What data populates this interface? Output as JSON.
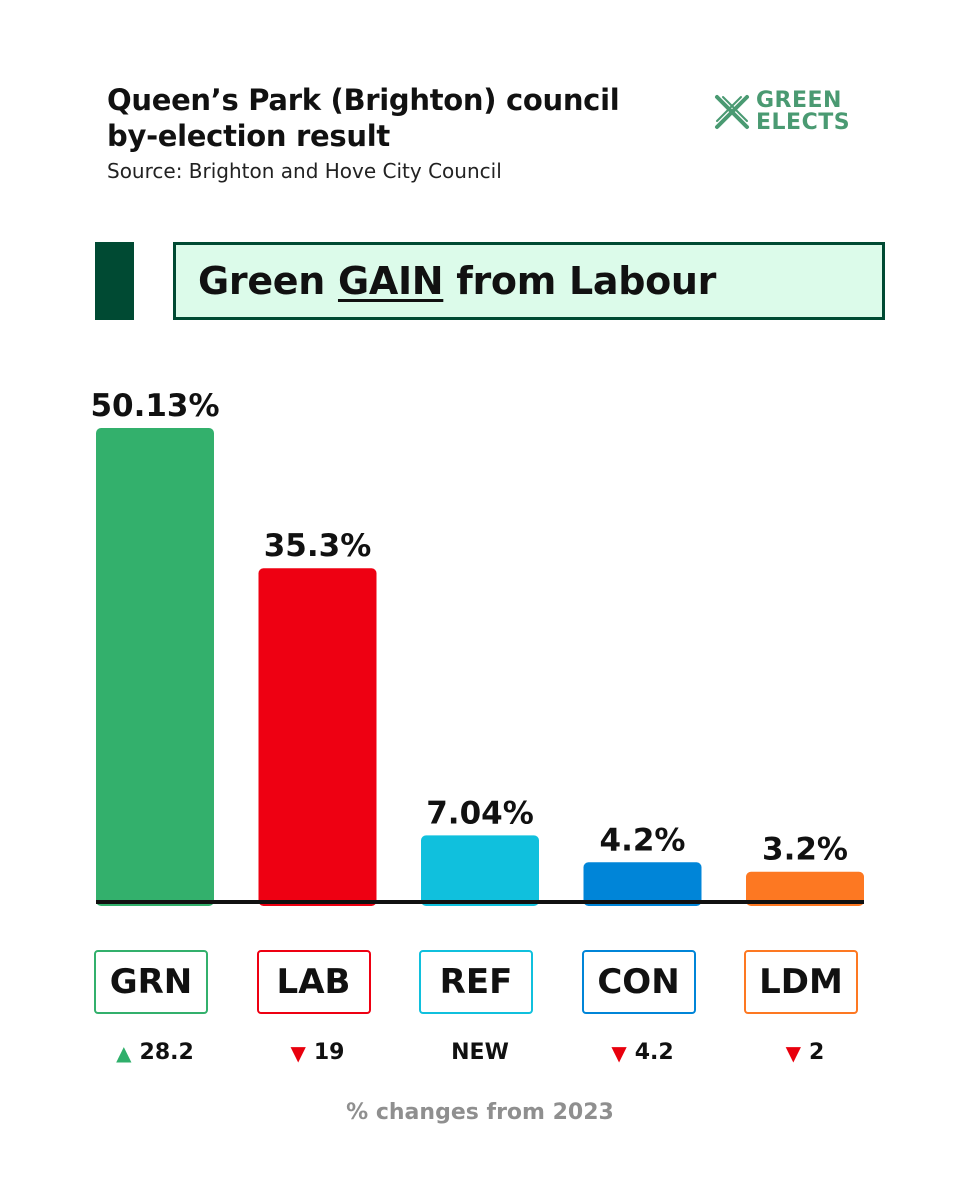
{
  "header": {
    "title_line1": "Queen’s Park (Brighton) council",
    "title_line2": "by-election result",
    "source": "Source: Brighton and Hove City Council"
  },
  "logo": {
    "line1": "GREEN",
    "line2": "ELECTS",
    "icon": "x-cross-logo-icon",
    "color": "#4a9a72"
  },
  "headline": {
    "before": "Green ",
    "emphasis": "GAIN",
    "after": " from Labour",
    "border_color": "#004a33",
    "background": "#dcfbea"
  },
  "chart_data": {
    "type": "bar",
    "title": "Queen’s Park (Brighton) council by-election result",
    "categories": [
      "GRN",
      "LAB",
      "REF",
      "CON",
      "LDM"
    ],
    "values": [
      50.13,
      35.3,
      7.04,
      4.2,
      3.2
    ],
    "value_labels": [
      "50.13%",
      "35.3%",
      "7.04%",
      "4.2%",
      "3.2%"
    ],
    "colors": [
      "#33b06c",
      "#ee0012",
      "#10c0dd",
      "#0085d8",
      "#fd7822"
    ],
    "ylim": [
      0,
      50.13
    ],
    "grid": false,
    "changes": [
      {
        "direction": "up",
        "value": "28.2"
      },
      {
        "direction": "down",
        "value": "19"
      },
      {
        "direction": "none",
        "value": "NEW"
      },
      {
        "direction": "down",
        "value": "4.2"
      },
      {
        "direction": "down",
        "value": "2"
      }
    ],
    "changes_note": "% changes from 2023"
  }
}
